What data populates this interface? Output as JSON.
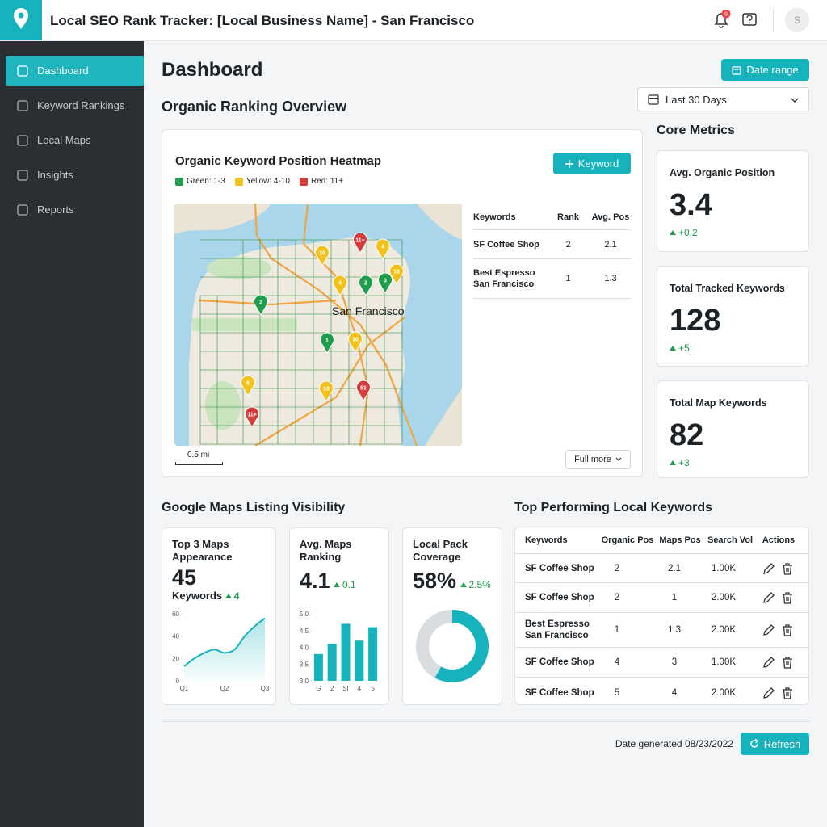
{
  "header": {
    "title": "Local SEO Rank Tracker: [Local Business Name] - San Francisco",
    "notifications": "9",
    "avatar": "S"
  },
  "sidebar": {
    "items": [
      "Dashboard",
      "Keyword Rankings",
      "Local Maps",
      "Insights",
      "Reports"
    ],
    "active": 0
  },
  "page": {
    "title": "Dashboard",
    "date_range": "Date range",
    "period": "Last 30 Days",
    "section": "Organic Ranking Overview"
  },
  "heatmap": {
    "title": "Organic Keyword Position Heatmap",
    "button": "Keyword",
    "legend": [
      {
        "label": "Green: 1-3",
        "color": "#1f9d4c"
      },
      {
        "label": "Yellow: 4-10",
        "color": "#f2c21b"
      },
      {
        "label": "Red: 11+",
        "color": "#d43c3c"
      }
    ],
    "map_label": "San Francisco",
    "pins": [
      {
        "label": "11+",
        "level": 2
      },
      {
        "label": "4",
        "level": 1
      },
      {
        "label": "10",
        "level": 1
      },
      {
        "label": "10",
        "level": 1
      },
      {
        "label": "4",
        "level": 1
      },
      {
        "label": "2",
        "level": 0
      },
      {
        "label": "3",
        "level": 0
      },
      {
        "label": "2",
        "level": 0
      },
      {
        "label": "1",
        "level": 0
      },
      {
        "label": "10",
        "level": 1
      },
      {
        "label": "6",
        "level": 1
      },
      {
        "label": "10",
        "level": 1
      },
      {
        "label": "51",
        "level": 2
      },
      {
        "label": "11+",
        "level": 2
      }
    ],
    "scale": "0.5 mi",
    "more": "Full more",
    "table": {
      "columns": [
        "Keywords",
        "Rank",
        "Avg. Pos"
      ],
      "rows": [
        [
          "SF Coffee Shop",
          2,
          2.1
        ],
        [
          "Best Espresso San Francisco",
          1,
          1.3
        ]
      ]
    }
  },
  "core_metrics": {
    "title": "Core Metrics",
    "cards": [
      {
        "label": "Avg. Organic Position",
        "value": 3.4,
        "change": "+0.2"
      },
      {
        "label": "Total Tracked Keywords",
        "value": 128,
        "change": "+5"
      },
      {
        "label": "Total Map Keywords",
        "value": 82,
        "change": "+3"
      }
    ]
  },
  "maps_visibility": {
    "title": "Google Maps Listing Visibility",
    "cards": [
      {
        "title": "Top 3 Maps Appearance",
        "value": 45,
        "unit": "Keywords",
        "change": 4
      },
      {
        "title": "Avg. Maps Ranking",
        "value": 4.1,
        "change": 0.1
      },
      {
        "title": "Local Pack Coverage",
        "value": "58%",
        "change": "2.5%"
      }
    ]
  },
  "top_keywords": {
    "title": "Top Performing Local Keywords",
    "columns": [
      "Keywords",
      "Organic Pos",
      "Maps Pos",
      "Search Vol",
      "Actions"
    ],
    "rows": [
      [
        "SF Coffee Shop",
        2,
        2.1,
        "1.00K"
      ],
      [
        "SF Coffee Shop",
        2,
        1,
        "2.00K"
      ],
      [
        "Best Espresso San Francisco",
        1,
        1.3,
        "2.00K"
      ],
      [
        "SF Coffee Shop",
        4,
        3,
        "1.00K"
      ],
      [
        "SF Coffee Shop",
        5,
        4,
        "2.00K"
      ]
    ]
  },
  "footer": {
    "generated": "Date generated 08/23/2022",
    "refresh": "Refresh"
  },
  "chart_data": [
    {
      "type": "line",
      "categories": [
        "Q1",
        null,
        null,
        null,
        "Q2",
        null,
        null,
        null,
        "Q3"
      ],
      "values": [
        13,
        20,
        25,
        28,
        25,
        28,
        40,
        49,
        56
      ],
      "color": "#17b3bd",
      "ylim": [
        0,
        60
      ],
      "yticks": [
        0,
        20,
        40,
        60
      ]
    },
    {
      "type": "bar",
      "categories": [
        "G",
        "2",
        "SI",
        "4",
        "5"
      ],
      "values": [
        3.8,
        4.1,
        4.7,
        4.2,
        4.6
      ],
      "color": "#17b3bd",
      "ylim": [
        3,
        5
      ],
      "yticks": [
        {
          "value": 3,
          "label": "3.0"
        },
        3.5,
        {
          "value": 4,
          "label": "4.0"
        },
        4.5,
        {
          "value": 5,
          "label": "5.0"
        }
      ]
    },
    {
      "type": "pie",
      "values": [
        58,
        42
      ],
      "colors": [
        "#17b3bd",
        "#d9dde0"
      ]
    }
  ]
}
